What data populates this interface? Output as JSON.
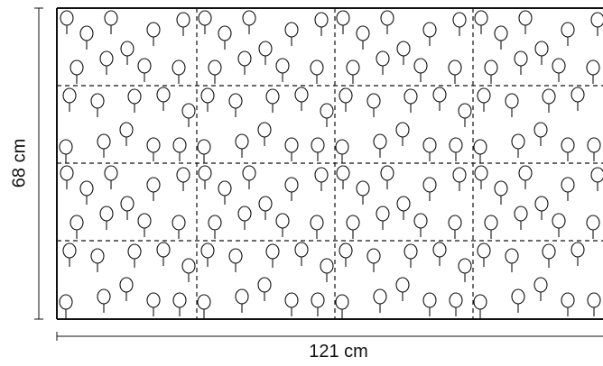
{
  "dimensions": {
    "height_label": "68 cm",
    "width_label": "121 cm"
  },
  "pattern": {
    "grid_rows": 4,
    "grid_cols_visible": 4,
    "motif": "lollipop-tree-icon",
    "line_color": "#111111",
    "grid_line_style": "dashed"
  }
}
